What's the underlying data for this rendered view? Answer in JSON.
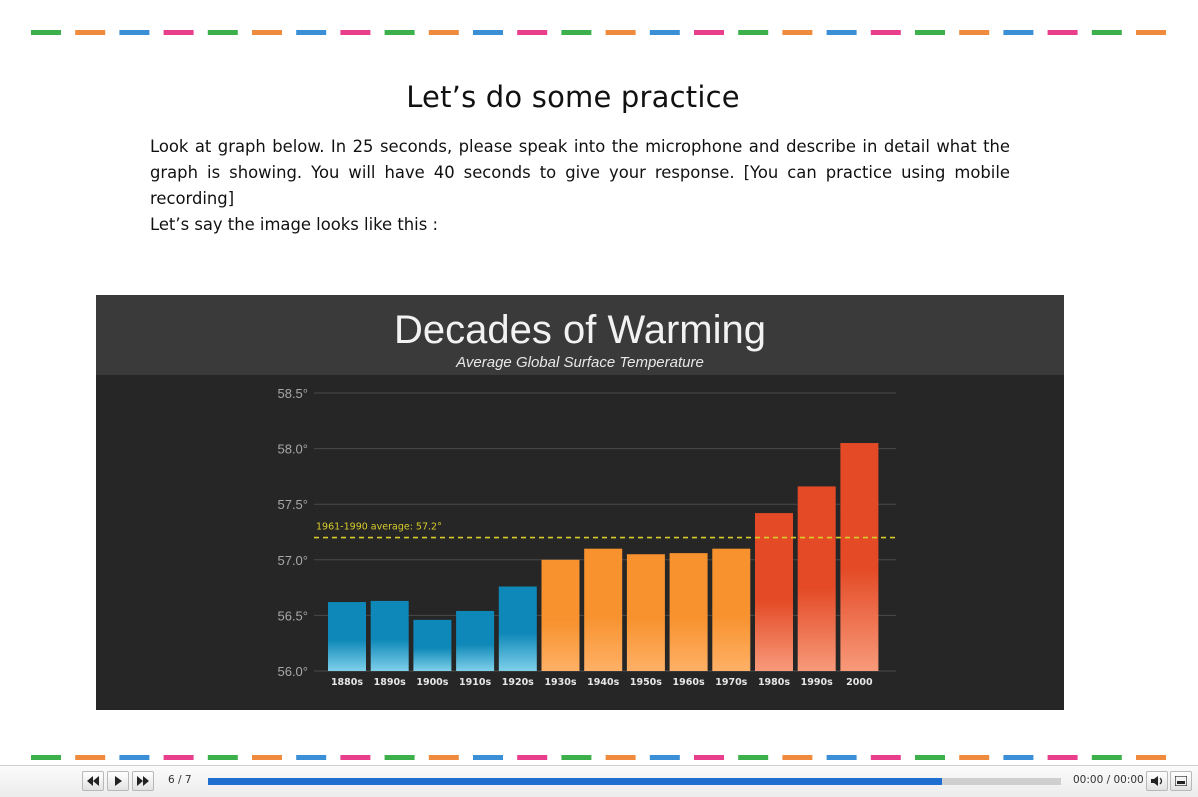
{
  "slide": {
    "title": "Let’s do some practice",
    "paragraph": "Look at graph below. In 25 seconds, please speak into the microphone and describe in detail what the graph is showing. You will have 40 seconds to give your response. [You can practice using mobile recording]",
    "lead_in": "Let’s say the image looks like this :"
  },
  "decor": {
    "dash_colors": [
      "#3cb04a",
      "#f08a3c",
      "#3a8fd6",
      "#e83e8c"
    ]
  },
  "chart_data": {
    "type": "bar",
    "title": "Decades of Warming",
    "subtitle": "Average Global Surface Temperature",
    "categories": [
      "1880s",
      "1890s",
      "1900s",
      "1910s",
      "1920s",
      "1930s",
      "1940s",
      "1950s",
      "1960s",
      "1970s",
      "1980s",
      "1990s",
      "2000"
    ],
    "values": [
      56.62,
      56.63,
      56.46,
      56.54,
      56.76,
      57.0,
      57.1,
      57.05,
      57.06,
      57.1,
      57.42,
      57.66,
      58.05
    ],
    "bar_groups": [
      "blue",
      "blue",
      "blue",
      "blue",
      "blue",
      "orange",
      "orange",
      "orange",
      "orange",
      "orange",
      "red",
      "red",
      "red"
    ],
    "colors": {
      "blue": [
        "#0e88b8",
        "#7fd0ea"
      ],
      "orange": [
        "#f7922e",
        "#ffb066"
      ],
      "red": [
        "#e44a26",
        "#f79a7a"
      ],
      "background": "#262626",
      "header": "#3a3a3a",
      "average_line": "#d9cc2a"
    },
    "yticks": [
      "58.5°",
      "58.0°",
      "57.5°",
      "57.0°",
      "56.5°",
      "56.0°"
    ],
    "ytick_values": [
      58.5,
      58.0,
      57.5,
      57.0,
      56.5,
      56.0
    ],
    "ylim": [
      56.0,
      58.5
    ],
    "reference_line": {
      "value": 57.2,
      "label": "1961-1990 average: 57.2°"
    },
    "grid": true,
    "legend": "none"
  },
  "player": {
    "rewind_icon": "rewind-icon",
    "play_icon": "play-icon",
    "forward_icon": "fast-forward-icon",
    "slide_counter": "6 / 7",
    "progress": 0.86,
    "time": "00:00 / 00:00",
    "volume_icon": "volume-icon",
    "menu_icon": "menu-icon"
  }
}
